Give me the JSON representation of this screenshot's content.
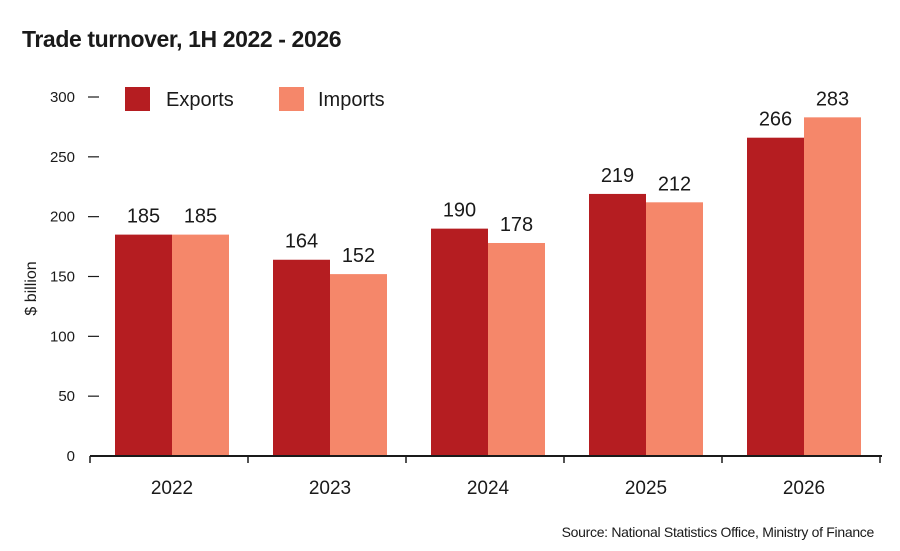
{
  "title": "Trade turnover, 1H 2022 - 2026",
  "source": "Source: National Statistics Office, Ministry of Finance",
  "colors": {
    "exports": "#b51d21",
    "imports": "#f5876a",
    "axis": "#1a1a1a",
    "text": "#1a1a1a"
  },
  "chart_data": {
    "type": "bar",
    "categories": [
      "2022",
      "2023",
      "2024",
      "2025",
      "2026"
    ],
    "series": [
      {
        "name": "Exports",
        "values": [
          185,
          164,
          190,
          219,
          266
        ]
      },
      {
        "name": "Imports",
        "values": [
          185,
          152,
          178,
          212,
          283
        ]
      }
    ],
    "title": "Trade turnover, 1H 2022 - 2026",
    "xlabel": "",
    "ylabel": "$ billion",
    "ylim": [
      0,
      300
    ],
    "yticks": [
      0,
      50,
      100,
      150,
      200,
      250,
      300
    ],
    "grid": false,
    "legend": "top-left"
  }
}
